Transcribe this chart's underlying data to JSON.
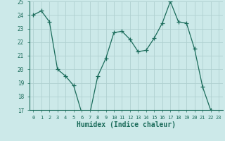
{
  "x": [
    0,
    1,
    2,
    3,
    4,
    5,
    6,
    7,
    8,
    9,
    10,
    11,
    12,
    13,
    14,
    15,
    16,
    17,
    18,
    19,
    20,
    21,
    22,
    23
  ],
  "y": [
    24.0,
    24.3,
    23.5,
    20.0,
    19.5,
    18.8,
    16.8,
    16.7,
    19.5,
    20.8,
    22.7,
    22.8,
    22.2,
    21.3,
    21.4,
    22.3,
    23.4,
    25.0,
    23.5,
    23.4,
    21.5,
    18.7,
    17.0,
    16.8
  ],
  "line_color": "#1a6b5a",
  "marker": "+",
  "marker_size": 4,
  "bg_color": "#cce9e9",
  "grid_color": "#b0d0d0",
  "xlabel": "Humidex (Indice chaleur)",
  "xlim": [
    -0.5,
    23.5
  ],
  "ylim": [
    17,
    25
  ],
  "yticks": [
    17,
    18,
    19,
    20,
    21,
    22,
    23,
    24,
    25
  ],
  "xticks": [
    0,
    1,
    2,
    3,
    4,
    5,
    6,
    7,
    8,
    9,
    10,
    11,
    12,
    13,
    14,
    15,
    16,
    17,
    18,
    19,
    20,
    21,
    22,
    23
  ]
}
